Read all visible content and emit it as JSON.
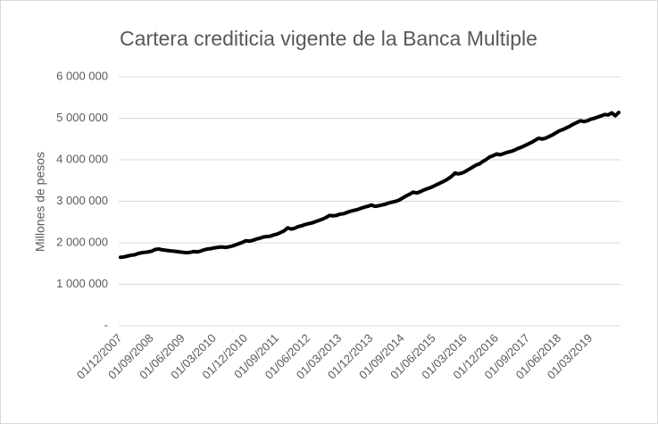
{
  "chart_data": {
    "type": "line",
    "title": "Cartera crediticia vigente de la Banca Multiple",
    "y_label": "Millones de pesos",
    "color": "#000000",
    "grid": true,
    "ylim": [
      0,
      6000000
    ],
    "yticks": [
      {
        "value": 0,
        "label": "-"
      },
      {
        "value": 1000000,
        "label": "1 000 000"
      },
      {
        "value": 2000000,
        "label": "2 000 000"
      },
      {
        "value": 3000000,
        "label": "3 000 000"
      },
      {
        "value": 4000000,
        "label": "4 000 000"
      },
      {
        "value": 5000000,
        "label": "5 000 000"
      },
      {
        "value": 6000000,
        "label": "6 000 000"
      }
    ],
    "categories": [
      "01/12/2007",
      null,
      null,
      null,
      null,
      null,
      null,
      null,
      null,
      "01/09/2008",
      null,
      null,
      null,
      null,
      null,
      null,
      null,
      null,
      "01/06/2009",
      null,
      null,
      null,
      null,
      null,
      null,
      null,
      null,
      "01/03/2010",
      null,
      null,
      null,
      null,
      null,
      null,
      null,
      null,
      "01/12/2010",
      null,
      null,
      null,
      null,
      null,
      null,
      null,
      null,
      "01/09/2011",
      null,
      null,
      null,
      null,
      null,
      null,
      null,
      null,
      "01/06/2012",
      null,
      null,
      null,
      null,
      null,
      null,
      null,
      null,
      "01/03/2013",
      null,
      null,
      null,
      null,
      null,
      null,
      null,
      null,
      "01/12/2013",
      null,
      null,
      null,
      null,
      null,
      null,
      null,
      null,
      "01/09/2014",
      null,
      null,
      null,
      null,
      null,
      null,
      null,
      null,
      "01/06/2015",
      null,
      null,
      null,
      null,
      null,
      null,
      null,
      null,
      "01/03/2016",
      null,
      null,
      null,
      null,
      null,
      null,
      null,
      null,
      "01/12/2016",
      null,
      null,
      null,
      null,
      null,
      null,
      null,
      null,
      "01/09/2017",
      null,
      null,
      null,
      null,
      null,
      null,
      null,
      null,
      "01/06/2018",
      null,
      null,
      null,
      null,
      null,
      null,
      null,
      null,
      "01/03/2019",
      null,
      null,
      null,
      null,
      null,
      null,
      null,
      null
    ],
    "values": [
      1650000,
      1660000,
      1680000,
      1700000,
      1710000,
      1740000,
      1760000,
      1770000,
      1780000,
      1800000,
      1840000,
      1850000,
      1830000,
      1820000,
      1810000,
      1800000,
      1790000,
      1780000,
      1770000,
      1760000,
      1770000,
      1790000,
      1780000,
      1800000,
      1830000,
      1850000,
      1860000,
      1880000,
      1890000,
      1900000,
      1890000,
      1900000,
      1920000,
      1950000,
      1980000,
      2010000,
      2050000,
      2040000,
      2060000,
      2090000,
      2110000,
      2140000,
      2150000,
      2160000,
      2190000,
      2210000,
      2250000,
      2290000,
      2360000,
      2330000,
      2350000,
      2390000,
      2410000,
      2440000,
      2460000,
      2480000,
      2510000,
      2540000,
      2570000,
      2610000,
      2660000,
      2650000,
      2660000,
      2690000,
      2700000,
      2730000,
      2760000,
      2780000,
      2800000,
      2830000,
      2860000,
      2880000,
      2910000,
      2880000,
      2890000,
      2910000,
      2930000,
      2960000,
      2980000,
      3000000,
      3030000,
      3080000,
      3130000,
      3170000,
      3220000,
      3200000,
      3230000,
      3270000,
      3300000,
      3330000,
      3370000,
      3410000,
      3450000,
      3490000,
      3540000,
      3600000,
      3680000,
      3660000,
      3680000,
      3720000,
      3770000,
      3820000,
      3870000,
      3900000,
      3960000,
      4010000,
      4070000,
      4100000,
      4140000,
      4120000,
      4150000,
      4180000,
      4200000,
      4230000,
      4270000,
      4300000,
      4340000,
      4380000,
      4420000,
      4470000,
      4520000,
      4500000,
      4520000,
      4560000,
      4600000,
      4650000,
      4700000,
      4730000,
      4770000,
      4810000,
      4860000,
      4900000,
      4940000,
      4920000,
      4940000,
      4980000,
      5000000,
      5030000,
      5060000,
      5090000,
      5080000,
      5130000,
      5060000,
      5140000
    ]
  }
}
